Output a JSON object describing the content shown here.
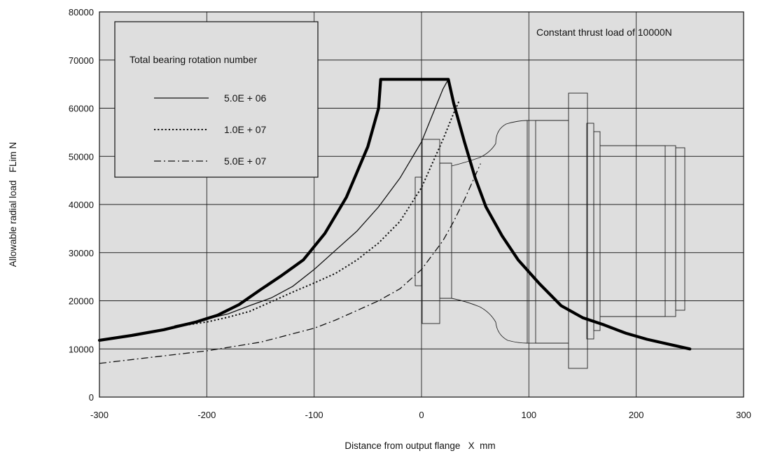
{
  "chart_data": {
    "type": "line",
    "title": "",
    "xlabel": "Distance from output flange   X  mm",
    "ylabel": "Allowable radial load   FLim N",
    "xlim": [
      -300,
      300
    ],
    "ylim": [
      0,
      80000
    ],
    "x_ticks": [
      -300,
      -200,
      -100,
      0,
      100,
      200,
      300
    ],
    "y_ticks": [
      0,
      10000,
      20000,
      30000,
      40000,
      50000,
      60000,
      70000,
      80000
    ],
    "grid": true,
    "annotation": "Constant thrust load of 10000N",
    "legend": {
      "title": "Total bearing rotation number",
      "placement": "top-left",
      "entries": [
        "5.0E + 06",
        "1.0E + 07",
        "5.0E + 07"
      ]
    },
    "series": [
      {
        "name": "5.0E + 06",
        "style": "solid",
        "points": [
          [
            -230,
            14800
          ],
          [
            -200,
            16200
          ],
          [
            -180,
            17300
          ],
          [
            -160,
            19000
          ],
          [
            -140,
            20600
          ],
          [
            -120,
            23000
          ],
          [
            -100,
            26500
          ],
          [
            -80,
            30500
          ],
          [
            -60,
            34500
          ],
          [
            -40,
            39500
          ],
          [
            -20,
            45500
          ],
          [
            0,
            53000
          ],
          [
            10,
            58500
          ],
          [
            20,
            64000
          ],
          [
            25,
            66000
          ]
        ]
      },
      {
        "name": "1.0E + 07",
        "style": "dotted",
        "points": [
          [
            -230,
            14600
          ],
          [
            -200,
            15600
          ],
          [
            -180,
            16600
          ],
          [
            -160,
            17800
          ],
          [
            -140,
            19800
          ],
          [
            -120,
            21800
          ],
          [
            -100,
            23700
          ],
          [
            -80,
            25700
          ],
          [
            -60,
            28500
          ],
          [
            -40,
            32000
          ],
          [
            -20,
            36500
          ],
          [
            0,
            43500
          ],
          [
            10,
            48500
          ],
          [
            20,
            53500
          ],
          [
            30,
            59000
          ],
          [
            35,
            61500
          ]
        ]
      },
      {
        "name": "5.0E + 07",
        "style": "dashdot",
        "points": [
          [
            -300,
            7000
          ],
          [
            -250,
            8300
          ],
          [
            -200,
            9600
          ],
          [
            -150,
            11400
          ],
          [
            -100,
            14300
          ],
          [
            -80,
            16000
          ],
          [
            -60,
            18000
          ],
          [
            -40,
            20000
          ],
          [
            -20,
            22500
          ],
          [
            0,
            26500
          ],
          [
            20,
            32500
          ],
          [
            30,
            36500
          ],
          [
            40,
            41000
          ],
          [
            50,
            46000
          ],
          [
            55,
            48500
          ]
        ]
      },
      {
        "name": "Allowable radial load limit",
        "style": "thick",
        "points": [
          [
            -300,
            11800
          ],
          [
            -270,
            12800
          ],
          [
            -240,
            14000
          ],
          [
            -210,
            15600
          ],
          [
            -190,
            17000
          ],
          [
            -170,
            19200
          ],
          [
            -150,
            22300
          ],
          [
            -130,
            25300
          ],
          [
            -110,
            28500
          ],
          [
            -90,
            34000
          ],
          [
            -70,
            41500
          ],
          [
            -50,
            52000
          ],
          [
            -40,
            60000
          ],
          [
            -38,
            66000
          ],
          [
            25,
            66000
          ],
          [
            30,
            61000
          ],
          [
            40,
            53000
          ],
          [
            50,
            45500
          ],
          [
            60,
            39500
          ],
          [
            75,
            33500
          ],
          [
            90,
            28500
          ],
          [
            110,
            23500
          ],
          [
            130,
            19000
          ],
          [
            150,
            16500
          ],
          [
            170,
            15000
          ],
          [
            190,
            13300
          ],
          [
            210,
            12000
          ],
          [
            230,
            11000
          ],
          [
            250,
            10000
          ]
        ]
      }
    ]
  }
}
